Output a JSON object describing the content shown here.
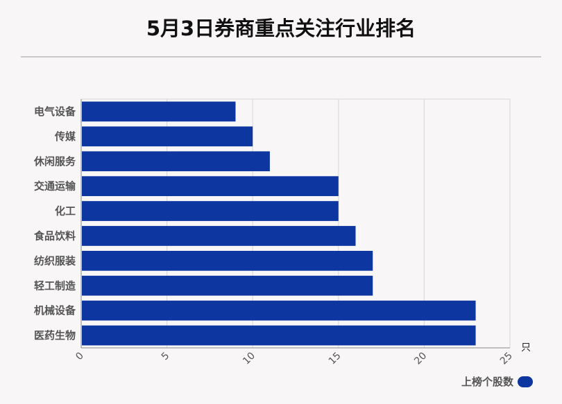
{
  "chart_data": {
    "type": "bar",
    "orientation": "horizontal",
    "title": "5月3日券商重点关注行业排名",
    "categories": [
      "电气设备",
      "传媒",
      "休闲服务",
      "交通运输",
      "化工",
      "食品饮料",
      "纺织服装",
      "轻工制造",
      "机械设备",
      "医药生物"
    ],
    "series": [
      {
        "name": "上榜个股数",
        "values": [
          9,
          10,
          11,
          15,
          15,
          16,
          17,
          17,
          23,
          23
        ]
      }
    ],
    "xlim": [
      0,
      25
    ],
    "x_ticks": [
      "0",
      "5",
      "10",
      "15",
      "20",
      "25"
    ],
    "unit": "只",
    "grid": true,
    "legend_position": "bottom-right",
    "bar_color": "#0d36a0"
  }
}
